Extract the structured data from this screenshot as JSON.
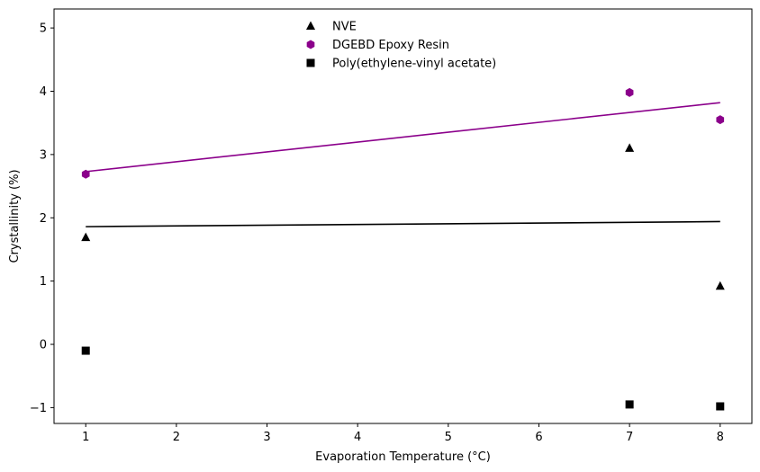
{
  "chart_data": {
    "type": "scatter",
    "xlabel": "Evaporation Temperature (°C)",
    "ylabel": "Crystallinity (%)",
    "xlim": [
      0.65,
      8.35
    ],
    "ylim": [
      -1.25,
      5.3
    ],
    "xticks": [
      1,
      2,
      3,
      4,
      5,
      6,
      7,
      8
    ],
    "yticks": [
      -1,
      0,
      1,
      2,
      3,
      4,
      5
    ],
    "grid": false,
    "legend_position": "top-center",
    "series": [
      {
        "name": "NVE",
        "marker": "triangle",
        "color": "#000000",
        "x": [
          1,
          7,
          8
        ],
        "y": [
          1.69,
          3.1,
          0.92
        ],
        "trendline": {
          "x": [
            1,
            8
          ],
          "y": [
            1.86,
            1.94
          ]
        }
      },
      {
        "name": "DGEBD Epoxy Resin",
        "marker": "hexagon",
        "color": "#8b008b",
        "x": [
          1,
          7,
          8
        ],
        "y": [
          2.69,
          3.98,
          3.55
        ],
        "trendline": {
          "x": [
            1,
            8
          ],
          "y": [
            2.73,
            3.82
          ]
        }
      },
      {
        "name": "Poly(ethylene-vinyl acetate)",
        "marker": "square",
        "color": "#000000",
        "x": [
          1,
          7,
          8
        ],
        "y": [
          -0.1,
          -0.95,
          -0.98
        ]
      }
    ]
  }
}
